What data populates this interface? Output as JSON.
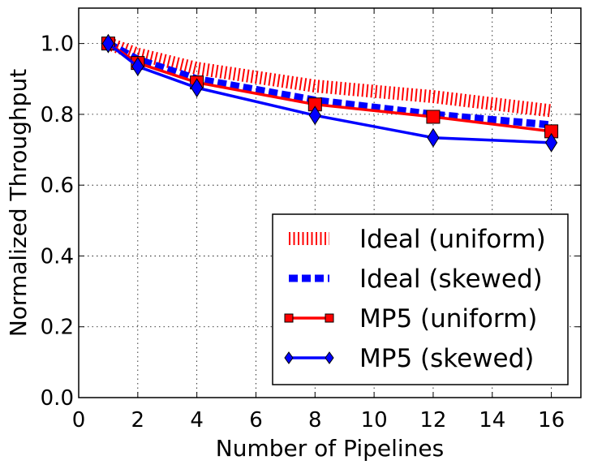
{
  "chart_data": {
    "type": "line",
    "xlabel": "Number of Pipelines",
    "ylabel": "Normalized Throughput",
    "xlim": [
      0,
      17
    ],
    "ylim": [
      0,
      1.1
    ],
    "xticks": [
      0,
      2,
      4,
      6,
      8,
      10,
      12,
      14,
      16
    ],
    "xtick_labels": [
      "0",
      "2",
      "4",
      "6",
      "8",
      "10",
      "12",
      "14",
      "16"
    ],
    "yticks": [
      0,
      0.2,
      0.4,
      0.6,
      0.8,
      1.0
    ],
    "ytick_labels": [
      "0.0",
      "0.2",
      "0.4",
      "0.6",
      "0.8",
      "1.0"
    ],
    "grid": true,
    "legend_position": "lower-right",
    "x": [
      1,
      2,
      4,
      8,
      12,
      16
    ],
    "series": [
      {
        "name": "Ideal (uniform)",
        "style": "hatched",
        "color": "#ff0000",
        "values": [
          1.0,
          0.97,
          0.93,
          0.88,
          0.85,
          0.81
        ]
      },
      {
        "name": "Ideal (skewed)",
        "style": "dashed",
        "color": "#0000ff",
        "values": [
          1.0,
          0.955,
          0.9,
          0.84,
          0.8,
          0.77
        ]
      },
      {
        "name": "MP5 (uniform)",
        "style": "line-square",
        "color": "#ff0000",
        "values": [
          1.0,
          0.945,
          0.89,
          0.828,
          0.793,
          0.752
        ]
      },
      {
        "name": "MP5 (skewed)",
        "style": "line-diamond",
        "color": "#0000ff",
        "values": [
          1.0,
          0.935,
          0.875,
          0.797,
          0.734,
          0.72
        ]
      }
    ]
  }
}
